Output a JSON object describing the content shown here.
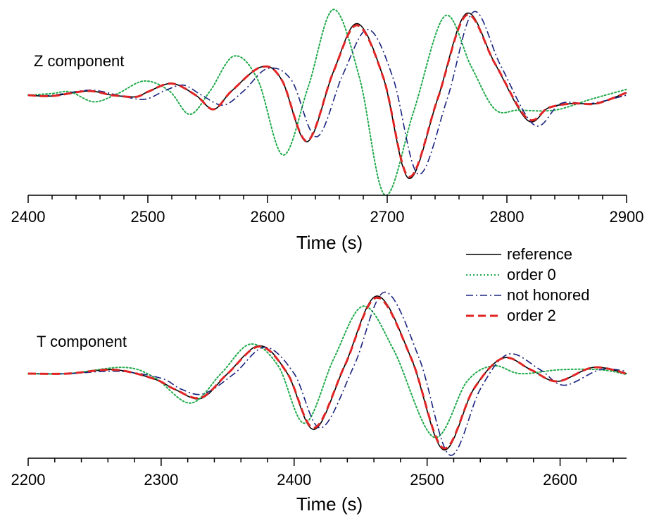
{
  "chart_data": [
    {
      "type": "line",
      "panel_label": "Z component",
      "xlabel": "Time (s)",
      "xlim": [
        2400,
        2900
      ],
      "xticks": [
        2400,
        2500,
        2600,
        2700,
        2800,
        2900
      ],
      "ylim": [
        -1.0,
        1.0
      ],
      "series": [
        {
          "name": "reference",
          "color": "#000000",
          "dash": "solid",
          "x": [
            2400,
            2420,
            2450,
            2470,
            2490,
            2500,
            2520,
            2540,
            2555,
            2570,
            2595,
            2612,
            2633,
            2655,
            2675,
            2697,
            2718,
            2742,
            2766,
            2790,
            2817,
            2835,
            2855,
            2875,
            2900
          ],
          "y": [
            0.0,
            -0.01,
            0.05,
            0.0,
            -0.02,
            0.04,
            0.14,
            0.0,
            -0.17,
            0.05,
            0.34,
            0.18,
            -0.56,
            0.28,
            0.86,
            0.2,
            -1.0,
            -0.05,
            0.98,
            0.38,
            -0.3,
            -0.15,
            -0.1,
            -0.1,
            0.03
          ]
        },
        {
          "name": "order 0",
          "color": "#1faa4a",
          "dash": "dotted",
          "x": [
            2400,
            2420,
            2435,
            2455,
            2475,
            2497,
            2518,
            2535,
            2552,
            2572,
            2592,
            2613,
            2634,
            2655,
            2677,
            2698,
            2722,
            2748,
            2770,
            2790,
            2810,
            2840,
            2870,
            2900
          ],
          "y": [
            0.0,
            0.02,
            0.04,
            -0.08,
            0.02,
            0.17,
            0.05,
            -0.23,
            0.05,
            0.47,
            0.18,
            -0.72,
            0.1,
            1.03,
            0.2,
            -1.2,
            -0.2,
            0.95,
            0.35,
            -0.17,
            -0.18,
            -0.18,
            -0.05,
            0.07
          ]
        },
        {
          "name": "not honored",
          "color": "#1a237e",
          "dash": "dashdot",
          "x": [
            2400,
            2420,
            2452,
            2475,
            2497,
            2515,
            2530,
            2545,
            2563,
            2580,
            2600,
            2620,
            2641,
            2663,
            2684,
            2705,
            2726,
            2750,
            2772,
            2795,
            2823,
            2845,
            2870,
            2900
          ],
          "y": [
            0.0,
            0.0,
            0.06,
            0.0,
            -0.05,
            0.06,
            0.12,
            0.0,
            -0.12,
            0.05,
            0.32,
            0.18,
            -0.5,
            0.25,
            0.79,
            0.2,
            -0.95,
            -0.05,
            1.0,
            0.35,
            -0.36,
            -0.1,
            -0.1,
            0.0
          ]
        },
        {
          "name": "order 2",
          "color": "#e02424",
          "dash": "dashed",
          "x": [
            2400,
            2420,
            2450,
            2470,
            2490,
            2500,
            2520,
            2540,
            2555,
            2570,
            2595,
            2612,
            2633,
            2655,
            2675,
            2697,
            2718,
            2742,
            2766,
            2790,
            2817,
            2835,
            2855,
            2875,
            2900
          ],
          "y": [
            0.0,
            -0.01,
            0.05,
            0.0,
            -0.02,
            0.04,
            0.14,
            0.0,
            -0.17,
            0.05,
            0.34,
            0.18,
            -0.55,
            0.28,
            0.84,
            0.2,
            -0.98,
            -0.05,
            0.96,
            0.38,
            -0.28,
            -0.15,
            -0.1,
            -0.1,
            0.03
          ]
        }
      ]
    },
    {
      "type": "line",
      "panel_label": "T component",
      "xlabel": "Time (s)",
      "xlim": [
        2200,
        2650
      ],
      "xticks": [
        2200,
        2300,
        2400,
        2500,
        2600
      ],
      "ylim": [
        -1.0,
        1.0
      ],
      "series": [
        {
          "name": "reference",
          "color": "#000000",
          "dash": "solid",
          "x": [
            2200,
            2230,
            2265,
            2295,
            2310,
            2330,
            2350,
            2374,
            2395,
            2415,
            2438,
            2462,
            2488,
            2512,
            2535,
            2557,
            2578,
            2598,
            2625,
            2650
          ],
          "y": [
            0.0,
            0.0,
            0.05,
            -0.07,
            -0.2,
            -0.32,
            0.0,
            0.36,
            0.0,
            -0.72,
            0.1,
            1.0,
            0.2,
            -0.98,
            -0.2,
            0.2,
            0.05,
            -0.1,
            0.08,
            0.0
          ]
        },
        {
          "name": "order 0",
          "color": "#1faa4a",
          "dash": "dotted",
          "x": [
            2200,
            2230,
            2272,
            2295,
            2322,
            2345,
            2367,
            2388,
            2408,
            2430,
            2452,
            2475,
            2505,
            2530,
            2550,
            2570,
            2600,
            2630,
            2650
          ],
          "y": [
            0.0,
            0.0,
            0.08,
            -0.05,
            -0.38,
            0.0,
            0.38,
            0.1,
            -0.64,
            0.2,
            0.87,
            0.3,
            -0.82,
            -0.1,
            0.1,
            0.0,
            0.05,
            0.05,
            -0.01
          ]
        },
        {
          "name": "not honored",
          "color": "#1a237e",
          "dash": "dashdot",
          "x": [
            2200,
            2230,
            2268,
            2300,
            2315,
            2332,
            2355,
            2378,
            2400,
            2420,
            2445,
            2468,
            2494,
            2517,
            2540,
            2561,
            2585,
            2603,
            2630,
            2650
          ],
          "y": [
            0.0,
            0.0,
            0.03,
            -0.06,
            -0.2,
            -0.26,
            0.0,
            0.34,
            0.0,
            -0.7,
            0.1,
            1.05,
            0.2,
            -1.05,
            -0.2,
            0.25,
            0.05,
            -0.15,
            0.05,
            0.03
          ]
        },
        {
          "name": "order 2",
          "color": "#e02424",
          "dash": "dashed",
          "x": [
            2200,
            2230,
            2265,
            2295,
            2310,
            2330,
            2350,
            2374,
            2395,
            2415,
            2438,
            2462,
            2488,
            2512,
            2535,
            2557,
            2578,
            2598,
            2625,
            2650
          ],
          "y": [
            0.0,
            0.0,
            0.05,
            -0.07,
            -0.2,
            -0.31,
            0.0,
            0.35,
            0.0,
            -0.7,
            0.1,
            0.98,
            0.2,
            -0.96,
            -0.2,
            0.2,
            0.05,
            -0.1,
            0.08,
            0.0
          ]
        }
      ]
    }
  ],
  "legend": {
    "placement": "between-panels-right",
    "entries": [
      "reference",
      "order 0",
      "not honored",
      "order 2"
    ]
  }
}
